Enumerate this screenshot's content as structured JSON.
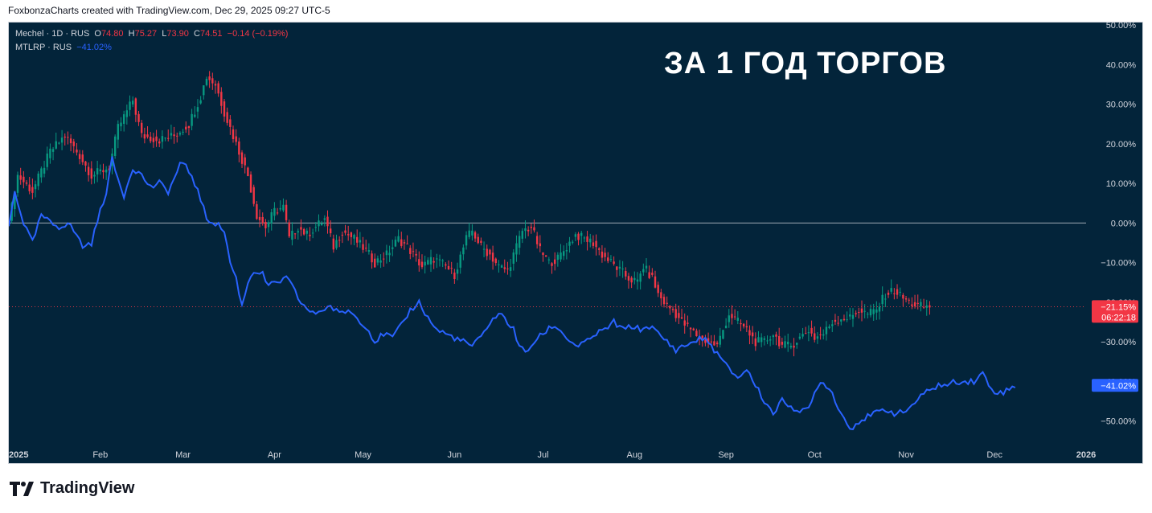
{
  "header": {
    "attribution": "FoxbonzaCharts created with TradingView.com, Dec 29, 2025 09:27 UTC-5"
  },
  "legend": {
    "main": {
      "symbol": "Mechel · 1D · RUS",
      "o_label": "O",
      "o": "74.80",
      "h_label": "H",
      "h": "75.27",
      "l_label": "L",
      "l": "73.90",
      "c_label": "C",
      "c": "74.51",
      "change": "−0.14 (−0.19%)"
    },
    "compare": {
      "symbol": "MTLRP · RUS",
      "value": "−41.02%"
    }
  },
  "annotation": "ЗА 1 ГОД ТОРГОВ",
  "footer": {
    "brand": "TradingView"
  },
  "colors": {
    "background": "#03243a",
    "up": "#089981",
    "down": "#f23645",
    "compare_line": "#2962ff"
  },
  "chart_data": {
    "type": "line",
    "yaxis": {
      "unit": "%",
      "min": -57,
      "max": 50,
      "ticks": [
        50,
        40,
        30,
        20,
        10,
        0,
        -10,
        -20,
        -30,
        -40,
        -50
      ],
      "tick_labels": [
        "50.00%",
        "40.00%",
        "30.00%",
        "20.00%",
        "10.00%",
        "0.00%",
        "−10.00%",
        "−20.00%",
        "−30.00%",
        "−40.00%",
        "−50.00%"
      ]
    },
    "xaxis": {
      "labels": [
        "2025",
        "Feb",
        "Mar",
        "Apr",
        "May",
        "Jun",
        "Jul",
        "Aug",
        "Sep",
        "Oct",
        "Nov",
        "Dec",
        "2026"
      ],
      "label_days": [
        0,
        31,
        59,
        90,
        120,
        151,
        181,
        212,
        243,
        273,
        304,
        334,
        365
      ]
    },
    "current_badges": [
      {
        "label": "−21.15%",
        "sub": "06:22:18",
        "value": -21.15,
        "color": "#f23645"
      },
      {
        "label": "−41.02%",
        "value": -41.02,
        "color": "#2962ff"
      }
    ],
    "series": [
      {
        "name": "Mechel",
        "style": "candles",
        "points": [
          [
            0,
            0
          ],
          [
            3,
            12
          ],
          [
            8,
            8
          ],
          [
            14,
            18
          ],
          [
            19,
            22
          ],
          [
            24,
            17
          ],
          [
            28,
            12
          ],
          [
            34,
            14
          ],
          [
            37,
            24
          ],
          [
            42,
            31
          ],
          [
            45,
            22
          ],
          [
            51,
            21
          ],
          [
            56,
            22
          ],
          [
            61,
            25
          ],
          [
            65,
            32
          ],
          [
            67,
            37
          ],
          [
            70,
            35
          ],
          [
            73,
            28
          ],
          [
            77,
            20
          ],
          [
            81,
            12
          ],
          [
            84,
            2
          ],
          [
            87,
            -1
          ],
          [
            90,
            3
          ],
          [
            93,
            4
          ],
          [
            95,
            -4
          ],
          [
            98,
            -1
          ],
          [
            101,
            -3
          ],
          [
            104,
            -1
          ],
          [
            107,
            1
          ],
          [
            110,
            -6
          ],
          [
            113,
            -2
          ],
          [
            117,
            -4
          ],
          [
            121,
            -7
          ],
          [
            124,
            -10
          ],
          [
            128,
            -8
          ],
          [
            132,
            -4
          ],
          [
            135,
            -6
          ],
          [
            137,
            -8
          ],
          [
            140,
            -11
          ],
          [
            144,
            -9
          ],
          [
            148,
            -11
          ],
          [
            151,
            -13
          ],
          [
            155,
            -4
          ],
          [
            157,
            -2
          ],
          [
            160,
            -6
          ],
          [
            163,
            -8
          ],
          [
            166,
            -11
          ],
          [
            169,
            -12
          ],
          [
            172,
            -6
          ],
          [
            174,
            -2
          ],
          [
            177,
            -1
          ],
          [
            180,
            -7
          ],
          [
            183,
            -10
          ],
          [
            186,
            -9
          ],
          [
            189,
            -6
          ],
          [
            192,
            -3
          ],
          [
            195,
            -4
          ],
          [
            198,
            -5
          ],
          [
            201,
            -8
          ],
          [
            204,
            -10
          ],
          [
            207,
            -12
          ],
          [
            210,
            -14
          ],
          [
            213,
            -15
          ],
          [
            215,
            -11
          ],
          [
            218,
            -14
          ],
          [
            220,
            -18
          ],
          [
            223,
            -21
          ],
          [
            225,
            -22
          ],
          [
            228,
            -25
          ],
          [
            231,
            -27
          ],
          [
            234,
            -29
          ],
          [
            237,
            -30
          ],
          [
            240,
            -31
          ],
          [
            244,
            -23
          ],
          [
            247,
            -25
          ],
          [
            250,
            -27
          ],
          [
            253,
            -30
          ],
          [
            256,
            -30
          ],
          [
            259,
            -28
          ],
          [
            262,
            -31
          ],
          [
            265,
            -31
          ],
          [
            268,
            -29
          ],
          [
            271,
            -27
          ],
          [
            273,
            -29
          ],
          [
            276,
            -28
          ],
          [
            279,
            -25
          ],
          [
            282,
            -24
          ],
          [
            285,
            -24
          ],
          [
            288,
            -22
          ],
          [
            291,
            -23
          ],
          [
            294,
            -22
          ],
          [
            297,
            -18
          ],
          [
            300,
            -17
          ],
          [
            303,
            -19
          ],
          [
            305,
            -20
          ],
          [
            308,
            -21
          ],
          [
            312,
            -21.15
          ]
        ]
      },
      {
        "name": "MTLRP",
        "style": "line",
        "points": [
          [
            0,
            -1
          ],
          [
            2,
            8
          ],
          [
            5,
            0
          ],
          [
            8,
            -5
          ],
          [
            11,
            2
          ],
          [
            14,
            0
          ],
          [
            17,
            -1
          ],
          [
            20,
            0
          ],
          [
            23,
            -3
          ],
          [
            25,
            -6
          ],
          [
            28,
            -5
          ],
          [
            31,
            3
          ],
          [
            33,
            8
          ],
          [
            35,
            16
          ],
          [
            37,
            11
          ],
          [
            39,
            7
          ],
          [
            42,
            14
          ],
          [
            45,
            12
          ],
          [
            48,
            9
          ],
          [
            51,
            10
          ],
          [
            54,
            8
          ],
          [
            56,
            11
          ],
          [
            58,
            15
          ],
          [
            60,
            14
          ],
          [
            62,
            12
          ],
          [
            65,
            6
          ],
          [
            67,
            1
          ],
          [
            70,
            0
          ],
          [
            73,
            -2
          ],
          [
            75,
            -10
          ],
          [
            77,
            -14
          ],
          [
            79,
            -21
          ],
          [
            81,
            -15
          ],
          [
            83,
            -12
          ],
          [
            86,
            -13
          ],
          [
            88,
            -16
          ],
          [
            91,
            -15
          ],
          [
            94,
            -14
          ],
          [
            96,
            -16
          ],
          [
            98,
            -19
          ],
          [
            100,
            -21
          ],
          [
            103,
            -23
          ],
          [
            106,
            -22
          ],
          [
            109,
            -21
          ],
          [
            112,
            -23
          ],
          [
            115,
            -22
          ],
          [
            118,
            -24
          ],
          [
            121,
            -26
          ],
          [
            124,
            -30
          ],
          [
            127,
            -28
          ],
          [
            130,
            -29
          ],
          [
            133,
            -26
          ],
          [
            136,
            -22
          ],
          [
            139,
            -20
          ],
          [
            142,
            -24
          ],
          [
            145,
            -27
          ],
          [
            148,
            -28
          ],
          [
            151,
            -29
          ],
          [
            154,
            -30
          ],
          [
            157,
            -31
          ],
          [
            160,
            -29
          ],
          [
            163,
            -25
          ],
          [
            166,
            -23
          ],
          [
            168,
            -24
          ],
          [
            171,
            -27
          ],
          [
            173,
            -31
          ],
          [
            175,
            -33
          ],
          [
            178,
            -30
          ],
          [
            181,
            -28
          ],
          [
            184,
            -26
          ],
          [
            187,
            -27
          ],
          [
            190,
            -30
          ],
          [
            193,
            -31
          ],
          [
            196,
            -30
          ],
          [
            199,
            -28
          ],
          [
            202,
            -27
          ],
          [
            205,
            -25
          ],
          [
            208,
            -27
          ],
          [
            211,
            -26
          ],
          [
            214,
            -27
          ],
          [
            217,
            -26
          ],
          [
            220,
            -28
          ],
          [
            223,
            -30
          ],
          [
            226,
            -32
          ],
          [
            229,
            -31
          ],
          [
            232,
            -30
          ],
          [
            235,
            -29
          ],
          [
            238,
            -31
          ],
          [
            241,
            -34
          ],
          [
            244,
            -37
          ],
          [
            247,
            -39
          ],
          [
            250,
            -37
          ],
          [
            253,
            -41
          ],
          [
            256,
            -45
          ],
          [
            259,
            -48
          ],
          [
            262,
            -45
          ],
          [
            265,
            -46
          ],
          [
            268,
            -48
          ],
          [
            271,
            -47
          ],
          [
            274,
            -41
          ],
          [
            276,
            -40
          ],
          [
            279,
            -43
          ],
          [
            282,
            -48
          ],
          [
            285,
            -52
          ],
          [
            288,
            -50
          ],
          [
            291,
            -49
          ],
          [
            294,
            -48
          ],
          [
            297,
            -47
          ],
          [
            300,
            -48
          ],
          [
            303,
            -48
          ],
          [
            306,
            -46
          ],
          [
            309,
            -44
          ],
          [
            312,
            -42
          ],
          [
            315,
            -41
          ],
          [
            318,
            -41
          ],
          [
            321,
            -40
          ],
          [
            324,
            -40
          ],
          [
            327,
            -40
          ],
          [
            330,
            -38
          ],
          [
            333,
            -42
          ],
          [
            336,
            -43
          ],
          [
            339,
            -42
          ],
          [
            341,
            -41.02
          ]
        ]
      }
    ]
  }
}
